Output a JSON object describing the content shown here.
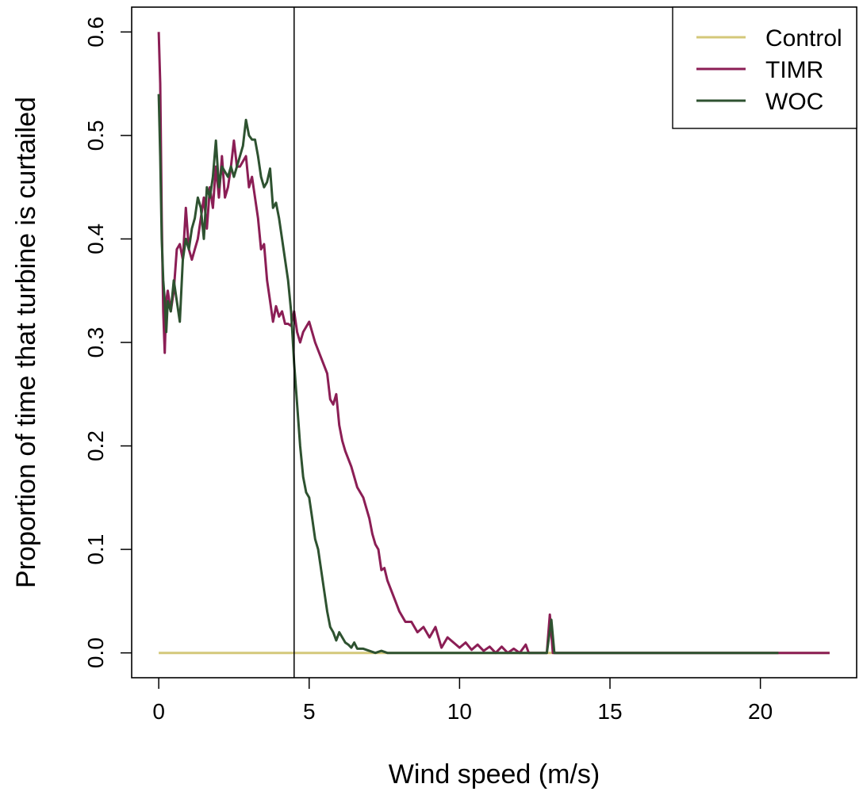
{
  "chart_data": {
    "type": "line",
    "title": "",
    "xlabel": "Wind speed (m/s)",
    "ylabel": "Proportion of time that turbine is curtailed",
    "xlim": [
      -0.9,
      23.2
    ],
    "ylim": [
      -0.024,
      0.624
    ],
    "xticks": [
      0,
      5,
      10,
      15,
      20
    ],
    "yticks": [
      0.0,
      0.1,
      0.2,
      0.3,
      0.4,
      0.5,
      0.6
    ],
    "xtick_labels": [
      "0",
      "5",
      "10",
      "15",
      "20"
    ],
    "ytick_labels": [
      "0.0",
      "0.1",
      "0.2",
      "0.3",
      "0.4",
      "0.5",
      "0.6"
    ],
    "vline_x": 4.5,
    "grid": false,
    "legend_position": "top-right",
    "series": [
      {
        "name": "Control",
        "color": "#D4C87A",
        "points": [
          [
            0,
            0
          ],
          [
            22.3,
            0
          ]
        ]
      },
      {
        "name": "TIMR",
        "color": "#8B1E55",
        "points": [
          [
            0.0,
            0.6
          ],
          [
            0.05,
            0.55
          ],
          [
            0.1,
            0.42
          ],
          [
            0.15,
            0.33
          ],
          [
            0.2,
            0.29
          ],
          [
            0.25,
            0.34
          ],
          [
            0.3,
            0.35
          ],
          [
            0.4,
            0.33
          ],
          [
            0.5,
            0.35
          ],
          [
            0.6,
            0.39
          ],
          [
            0.7,
            0.395
          ],
          [
            0.8,
            0.38
          ],
          [
            0.9,
            0.43
          ],
          [
            1.0,
            0.39
          ],
          [
            1.1,
            0.38
          ],
          [
            1.2,
            0.39
          ],
          [
            1.3,
            0.4
          ],
          [
            1.4,
            0.42
          ],
          [
            1.5,
            0.44
          ],
          [
            1.6,
            0.41
          ],
          [
            1.7,
            0.45
          ],
          [
            1.8,
            0.43
          ],
          [
            1.9,
            0.47
          ],
          [
            2.0,
            0.44
          ],
          [
            2.1,
            0.48
          ],
          [
            2.2,
            0.44
          ],
          [
            2.3,
            0.45
          ],
          [
            2.4,
            0.47
          ],
          [
            2.5,
            0.495
          ],
          [
            2.6,
            0.47
          ],
          [
            2.7,
            0.47
          ],
          [
            2.8,
            0.475
          ],
          [
            2.9,
            0.48
          ],
          [
            3.0,
            0.45
          ],
          [
            3.1,
            0.46
          ],
          [
            3.2,
            0.44
          ],
          [
            3.3,
            0.42
          ],
          [
            3.4,
            0.39
          ],
          [
            3.5,
            0.395
          ],
          [
            3.6,
            0.36
          ],
          [
            3.7,
            0.34
          ],
          [
            3.8,
            0.32
          ],
          [
            3.9,
            0.335
          ],
          [
            4.0,
            0.325
          ],
          [
            4.1,
            0.33
          ],
          [
            4.2,
            0.318
          ],
          [
            4.3,
            0.318
          ],
          [
            4.4,
            0.316
          ],
          [
            4.5,
            0.33
          ],
          [
            4.6,
            0.31
          ],
          [
            4.7,
            0.3
          ],
          [
            4.8,
            0.31
          ],
          [
            5.0,
            0.32
          ],
          [
            5.2,
            0.3
          ],
          [
            5.4,
            0.285
          ],
          [
            5.6,
            0.27
          ],
          [
            5.7,
            0.245
          ],
          [
            5.8,
            0.24
          ],
          [
            5.9,
            0.25
          ],
          [
            6.0,
            0.22
          ],
          [
            6.1,
            0.205
          ],
          [
            6.2,
            0.195
          ],
          [
            6.4,
            0.18
          ],
          [
            6.6,
            0.16
          ],
          [
            6.8,
            0.15
          ],
          [
            7.0,
            0.13
          ],
          [
            7.1,
            0.115
          ],
          [
            7.2,
            0.105
          ],
          [
            7.3,
            0.1
          ],
          [
            7.4,
            0.08
          ],
          [
            7.5,
            0.082
          ],
          [
            7.6,
            0.07
          ],
          [
            7.8,
            0.055
          ],
          [
            8.0,
            0.04
          ],
          [
            8.2,
            0.03
          ],
          [
            8.4,
            0.03
          ],
          [
            8.6,
            0.02
          ],
          [
            8.8,
            0.025
          ],
          [
            9.0,
            0.015
          ],
          [
            9.2,
            0.025
          ],
          [
            9.4,
            0.005
          ],
          [
            9.6,
            0.015
          ],
          [
            9.8,
            0.01
          ],
          [
            10.0,
            0.005
          ],
          [
            10.2,
            0.01
          ],
          [
            10.4,
            0.003
          ],
          [
            10.6,
            0.008
          ],
          [
            10.8,
            0.002
          ],
          [
            11.0,
            0.006
          ],
          [
            11.2,
            0.0
          ],
          [
            11.4,
            0.006
          ],
          [
            11.6,
            0.0
          ],
          [
            11.8,
            0.004
          ],
          [
            12.0,
            0.0
          ],
          [
            12.2,
            0.008
          ],
          [
            12.3,
            0.0
          ],
          [
            12.6,
            0.0
          ],
          [
            12.9,
            0.0
          ],
          [
            13.0,
            0.037
          ],
          [
            13.1,
            0.0
          ],
          [
            14.0,
            0.0
          ],
          [
            22.3,
            0.0
          ]
        ]
      },
      {
        "name": "WOC",
        "color": "#2E5230",
        "points": [
          [
            0.0,
            0.54
          ],
          [
            0.05,
            0.48
          ],
          [
            0.1,
            0.4
          ],
          [
            0.15,
            0.36
          ],
          [
            0.2,
            0.34
          ],
          [
            0.25,
            0.31
          ],
          [
            0.3,
            0.34
          ],
          [
            0.4,
            0.33
          ],
          [
            0.5,
            0.36
          ],
          [
            0.6,
            0.34
          ],
          [
            0.7,
            0.32
          ],
          [
            0.8,
            0.38
          ],
          [
            0.9,
            0.4
          ],
          [
            1.0,
            0.39
          ],
          [
            1.1,
            0.41
          ],
          [
            1.2,
            0.42
          ],
          [
            1.3,
            0.44
          ],
          [
            1.4,
            0.43
          ],
          [
            1.5,
            0.4
          ],
          [
            1.6,
            0.45
          ],
          [
            1.7,
            0.44
          ],
          [
            1.8,
            0.46
          ],
          [
            1.9,
            0.495
          ],
          [
            2.0,
            0.45
          ],
          [
            2.1,
            0.47
          ],
          [
            2.2,
            0.465
          ],
          [
            2.3,
            0.46
          ],
          [
            2.4,
            0.47
          ],
          [
            2.5,
            0.46
          ],
          [
            2.6,
            0.47
          ],
          [
            2.7,
            0.48
          ],
          [
            2.8,
            0.49
          ],
          [
            2.9,
            0.515
          ],
          [
            3.0,
            0.5
          ],
          [
            3.1,
            0.496
          ],
          [
            3.2,
            0.496
          ],
          [
            3.3,
            0.48
          ],
          [
            3.4,
            0.46
          ],
          [
            3.5,
            0.45
          ],
          [
            3.6,
            0.455
          ],
          [
            3.7,
            0.468
          ],
          [
            3.8,
            0.43
          ],
          [
            3.9,
            0.435
          ],
          [
            4.0,
            0.42
          ],
          [
            4.1,
            0.4
          ],
          [
            4.2,
            0.38
          ],
          [
            4.3,
            0.36
          ],
          [
            4.4,
            0.33
          ],
          [
            4.5,
            0.28
          ],
          [
            4.6,
            0.24
          ],
          [
            4.7,
            0.2
          ],
          [
            4.8,
            0.17
          ],
          [
            4.9,
            0.155
          ],
          [
            5.0,
            0.15
          ],
          [
            5.1,
            0.13
          ],
          [
            5.2,
            0.11
          ],
          [
            5.3,
            0.1
          ],
          [
            5.4,
            0.08
          ],
          [
            5.5,
            0.06
          ],
          [
            5.6,
            0.04
          ],
          [
            5.7,
            0.025
          ],
          [
            5.8,
            0.02
          ],
          [
            5.9,
            0.012
          ],
          [
            6.0,
            0.02
          ],
          [
            6.1,
            0.015
          ],
          [
            6.2,
            0.01
          ],
          [
            6.3,
            0.008
          ],
          [
            6.4,
            0.005
          ],
          [
            6.5,
            0.01
          ],
          [
            6.6,
            0.004
          ],
          [
            6.8,
            0.004
          ],
          [
            7.0,
            0.002
          ],
          [
            7.2,
            0.0
          ],
          [
            7.4,
            0.002
          ],
          [
            7.6,
            0.0
          ],
          [
            8.0,
            0.0
          ],
          [
            9.0,
            0.0
          ],
          [
            10.0,
            0.0
          ],
          [
            11.0,
            0.0
          ],
          [
            12.0,
            0.0
          ],
          [
            12.9,
            0.0
          ],
          [
            13.05,
            0.032
          ],
          [
            13.15,
            0.0
          ],
          [
            14.0,
            0.0
          ],
          [
            20.6,
            0.0
          ]
        ]
      }
    ]
  }
}
